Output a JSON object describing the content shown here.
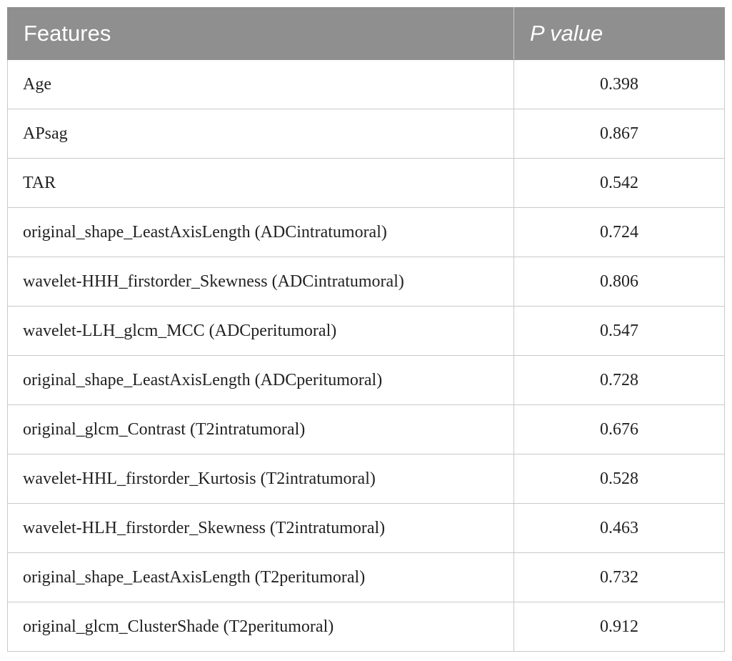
{
  "table": {
    "headers": [
      "Features",
      "P value"
    ],
    "rows": [
      {
        "feature": "Age",
        "p_value": "0.398"
      },
      {
        "feature": "APsag",
        "p_value": "0.867"
      },
      {
        "feature": "TAR",
        "p_value": "0.542"
      },
      {
        "feature": "original_shape_LeastAxisLength (ADCintratumoral)",
        "p_value": "0.724"
      },
      {
        "feature": "wavelet-HHH_firstorder_Skewness (ADCintratumoral)",
        "p_value": "0.806"
      },
      {
        "feature": "wavelet-LLH_glcm_MCC (ADCperitumoral)",
        "p_value": "0.547"
      },
      {
        "feature": "original_shape_LeastAxisLength (ADCperitumoral)",
        "p_value": "0.728"
      },
      {
        "feature": "original_glcm_Contrast (T2intratumoral)",
        "p_value": "0.676"
      },
      {
        "feature": "wavelet-HHL_firstorder_Kurtosis (T2intratumoral)",
        "p_value": "0.528"
      },
      {
        "feature": "wavelet-HLH_firstorder_Skewness (T2intratumoral)",
        "p_value": "0.463"
      },
      {
        "feature": "original_shape_LeastAxisLength (T2peritumoral)",
        "p_value": "0.732"
      },
      {
        "feature": "original_glcm_ClusterShade (T2peritumoral)",
        "p_value": "0.912"
      }
    ]
  }
}
